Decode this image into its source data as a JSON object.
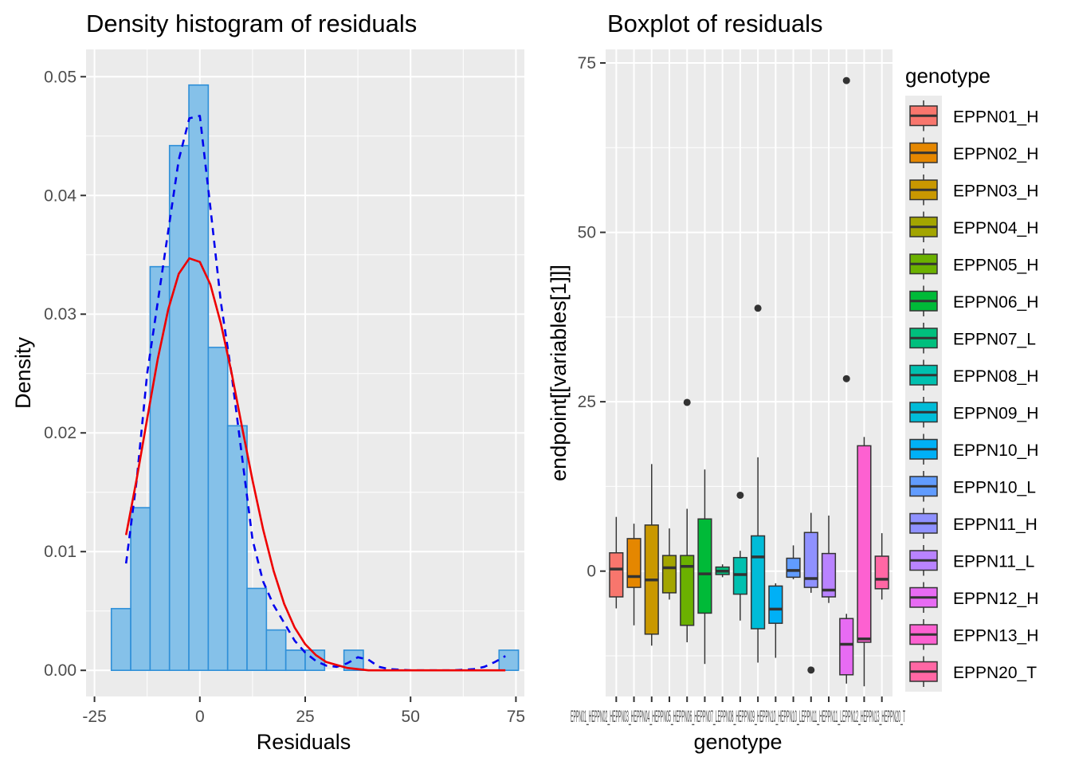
{
  "chart_data": [
    {
      "type": "bar",
      "title": "Density histogram of residuals",
      "xlabel": "Residuals",
      "ylabel": "Density",
      "xlim": [
        -27,
        77
      ],
      "ylim": [
        -0.0022,
        0.0523
      ],
      "x_ticks": [
        -25,
        0,
        25,
        50,
        75
      ],
      "x_tick_labels": [
        "-25",
        "0",
        "25",
        "50",
        "75"
      ],
      "y_ticks": [
        0,
        0.01,
        0.02,
        0.03,
        0.04,
        0.05
      ],
      "y_tick_labels": [
        "0.00",
        "0.01",
        "0.02",
        "0.03",
        "0.04",
        "0.05"
      ],
      "grid": true,
      "colors": {
        "bar_fill": "#85c1e9",
        "bar_stroke": "#2e8fd8",
        "density_line": "#0000ee",
        "normal_line": "#ee0000",
        "panel": "#ebebeb"
      },
      "bins": {
        "left_edges": [
          -21,
          -16.4,
          -11.8,
          -7.2,
          -2.6,
          2,
          6.6,
          11.2,
          15.8,
          20.4,
          25,
          29.6,
          34.2,
          38.8,
          43.4,
          48,
          52.6,
          57.2,
          61.8,
          66.4,
          71
        ],
        "width": 4.6,
        "density": [
          0.0052,
          0.0137,
          0.034,
          0.0442,
          0.0493,
          0.0272,
          0.0206,
          0.0069,
          0.0034,
          0.0017,
          0.0017,
          0,
          0.0017,
          0,
          0,
          0,
          0,
          0,
          0,
          0,
          0.0017
        ]
      },
      "series": [
        {
          "style": "dashed",
          "x": [
            -17.5,
            -15,
            -12.5,
            -10,
            -7.5,
            -5,
            -2.5,
            0,
            2.5,
            5,
            7.5,
            10,
            12.5,
            15,
            17.5,
            20,
            22.5,
            25,
            27.5,
            30,
            32.5,
            35,
            37.5,
            40,
            42.5,
            45,
            50,
            55,
            60,
            65,
            67.5,
            70,
            72.5
          ],
          "y": [
            0.009,
            0.016,
            0.025,
            0.031,
            0.037,
            0.043,
            0.0465,
            0.0467,
            0.039,
            0.031,
            0.025,
            0.018,
            0.011,
            0.0075,
            0.0055,
            0.004,
            0.0025,
            0.0015,
            0.0008,
            0.0004,
            0.0003,
            0.0006,
            0.0011,
            0.0009,
            0.0003,
            0.0001,
            0,
            0,
            0,
            0.0001,
            0.0003,
            0.0007,
            0.0012
          ]
        },
        {
          "style": "solid",
          "x": [
            -17.5,
            -15,
            -12.5,
            -10,
            -7.5,
            -5,
            -2.5,
            0,
            2.5,
            5,
            7.5,
            10,
            12.5,
            15,
            17.5,
            20,
            22.5,
            25,
            27.5,
            30,
            35,
            40,
            45,
            50,
            55,
            60,
            65,
            70,
            72.5
          ],
          "y": [
            0.0114,
            0.0161,
            0.0212,
            0.0262,
            0.0304,
            0.0334,
            0.0347,
            0.0344,
            0.0325,
            0.0292,
            0.0251,
            0.0205,
            0.016,
            0.0119,
            0.0084,
            0.0056,
            0.0036,
            0.0022,
            0.0013,
            0.0007,
            0.0002,
            0,
            0,
            0,
            0,
            0,
            0,
            0,
            0
          ]
        }
      ]
    },
    {
      "type": "box",
      "title": "Boxplot of residuals",
      "xlabel": "genotype",
      "ylabel": "endpoint[[variables[1]]]",
      "ylim": [
        -18.5,
        77
      ],
      "y_ticks": [
        0,
        25,
        50,
        75
      ],
      "y_tick_labels": [
        "0",
        "25",
        "50",
        "75"
      ],
      "grid": true,
      "legend": {
        "title": "genotype",
        "position": "right"
      },
      "x_tick_labels_overlap_text": "EPPN01_HEPPN02_HEPPN03_HEPPN04_HEPPN05_HEPPN06_HEPPN07_LEPPN08_HEPPN09_HEPPN10_HEPPN10_LEPPN11_HEPPN11_LEPPN12_HEPPN13_HEPPN20_T",
      "categories": [
        "EPPN01_H",
        "EPPN02_H",
        "EPPN03_H",
        "EPPN04_H",
        "EPPN05_H",
        "EPPN06_H",
        "EPPN07_L",
        "EPPN08_H",
        "EPPN09_H",
        "EPPN10_H",
        "EPPN10_L",
        "EPPN11_H",
        "EPPN11_L",
        "EPPN12_H",
        "EPPN13_H",
        "EPPN20_T"
      ],
      "colors": [
        "#f8766d",
        "#e58700",
        "#c99800",
        "#a3a500",
        "#6bb100",
        "#00ba38",
        "#00bf7d",
        "#00c0af",
        "#00bcd8",
        "#00b0f6",
        "#619cff",
        "#8f91ff",
        "#b983ff",
        "#e76bf3",
        "#fd61d1",
        "#ff67a4"
      ],
      "boxes": [
        {
          "whisker_low": -5.5,
          "q1": -3.8,
          "median": 0.3,
          "q3": 2.7,
          "whisker_high": 8.0,
          "outliers": []
        },
        {
          "whisker_low": -8.0,
          "q1": -2.4,
          "median": -0.8,
          "q3": 4.8,
          "whisker_high": 7.0,
          "outliers": []
        },
        {
          "whisker_low": -11.0,
          "q1": -9.3,
          "median": -1.3,
          "q3": 6.8,
          "whisker_high": 15.8,
          "outliers": []
        },
        {
          "whisker_low": -4.2,
          "q1": -3.2,
          "median": 0.5,
          "q3": 2.3,
          "whisker_high": 6.3,
          "outliers": []
        },
        {
          "whisker_low": -10.5,
          "q1": -8.0,
          "median": 0.7,
          "q3": 2.3,
          "whisker_high": 9.2,
          "outliers": [
            24.9
          ]
        },
        {
          "whisker_low": -13.7,
          "q1": -6.2,
          "median": -0.4,
          "q3": 7.7,
          "whisker_high": 15.0,
          "outliers": []
        },
        {
          "whisker_low": -0.9,
          "q1": -0.5,
          "median": 0.0,
          "q3": 0.6,
          "whisker_high": 1.0,
          "outliers": []
        },
        {
          "whisker_low": -7.3,
          "q1": -3.4,
          "median": -0.5,
          "q3": 2.0,
          "whisker_high": 3.0,
          "outliers": [
            11.2
          ]
        },
        {
          "whisker_low": -13.5,
          "q1": -8.5,
          "median": 2.1,
          "q3": 5.2,
          "whisker_high": 16.8,
          "outliers": [
            38.8
          ]
        },
        {
          "whisker_low": -12.8,
          "q1": -7.7,
          "median": -5.6,
          "q3": -2.2,
          "whisker_high": -1.8,
          "outliers": []
        },
        {
          "whisker_low": -1.2,
          "q1": -0.9,
          "median": 0.1,
          "q3": 1.9,
          "whisker_high": 3.8,
          "outliers": []
        },
        {
          "whisker_low": -3.2,
          "q1": -2.4,
          "median": -1.1,
          "q3": 5.7,
          "whisker_high": 8.6,
          "outliers": [
            -14.6
          ]
        },
        {
          "whisker_low": -4.7,
          "q1": -3.8,
          "median": -2.8,
          "q3": 2.6,
          "whisker_high": 8.2,
          "outliers": []
        },
        {
          "whisker_low": -16.6,
          "q1": -15.3,
          "median": -10.8,
          "q3": -7.0,
          "whisker_high": -6.3,
          "outliers": [
            28.4,
            72.4
          ]
        },
        {
          "whisker_low": -17.0,
          "q1": -10.5,
          "median": -10.0,
          "q3": 18.5,
          "whisker_high": 19.8,
          "outliers": []
        },
        {
          "whisker_low": -4.2,
          "q1": -2.6,
          "median": -1.2,
          "q3": 2.2,
          "whisker_high": 5.6,
          "outliers": []
        }
      ]
    }
  ]
}
